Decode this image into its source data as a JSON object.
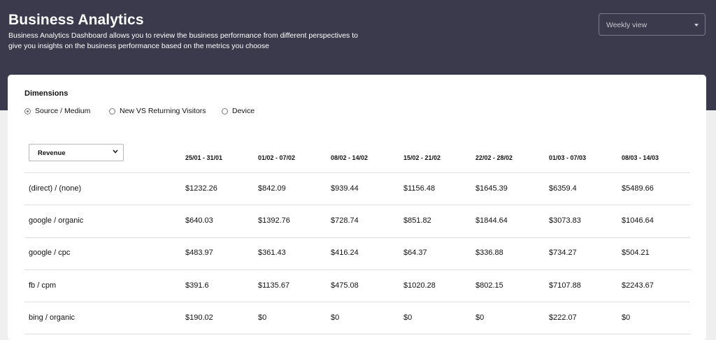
{
  "header": {
    "title": "Business Analytics",
    "description": "Business Analytics Dashboard allows you to review the business performance from different perspectives to give you insights on the business performance based on the metrics you choose",
    "view_select": "Weekly view"
  },
  "dimensions": {
    "title": "Dimensions",
    "options": [
      "Source / Medium",
      "New VS Returning Visitors",
      "Device"
    ],
    "selected": "Source / Medium"
  },
  "table": {
    "metric": "Revenue",
    "columns": [
      "25/01 - 31/01",
      "01/02 - 07/02",
      "08/02 - 14/02",
      "15/02 - 21/02",
      "22/02 - 28/02",
      "01/03 - 07/03",
      "08/03 - 14/03"
    ],
    "rows": [
      {
        "label": "(direct) / (none)",
        "values": [
          "$1232.26",
          "$842.09",
          "$939.44",
          "$1156.48",
          "$1645.39",
          "$6359.4",
          "$5489.66"
        ]
      },
      {
        "label": "google / organic",
        "values": [
          "$640.03",
          "$1392.76",
          "$728.74",
          "$851.82",
          "$1844.64",
          "$3073.83",
          "$1046.64"
        ]
      },
      {
        "label": "google / cpc",
        "values": [
          "$483.97",
          "$361.43",
          "$416.24",
          "$64.37",
          "$336.88",
          "$734.27",
          "$504.21"
        ]
      },
      {
        "label": "fb / cpm",
        "values": [
          "$391.6",
          "$1135.67",
          "$475.08",
          "$1020.28",
          "$802.15",
          "$7107.88",
          "$2243.67"
        ]
      },
      {
        "label": "bing / organic",
        "values": [
          "$190.02",
          "$0",
          "$0",
          "$0",
          "$0",
          "$222.07",
          "$0"
        ]
      }
    ]
  }
}
